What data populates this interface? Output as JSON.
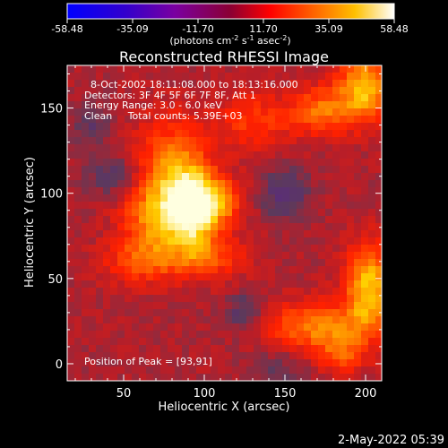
{
  "chart_data": {
    "type": "heatmap",
    "colorbar": {
      "ticks": [
        "-58.48",
        "-35.09",
        "-11.70",
        "11.70",
        "35.09",
        "58.48"
      ],
      "min": -58.48,
      "max": 58.48,
      "unit_label_parts": [
        "(photons cm",
        "-2",
        " s",
        "-1",
        " asec",
        "-2",
        ")"
      ]
    },
    "title": "Reconstructed RHESSI Image",
    "annotations": [
      "8-Oct-2002 18:11:08.000 to 18:13:16.000",
      "Detectors: 3F 4F 5F 6F 7F 8F, Att 1",
      "Energy Range: 3.0 - 6.0 keV",
      "Clean     Total counts: 5.39E+03"
    ],
    "peak_label": "Position of Peak = [93,91]",
    "peak": [
      93,
      91
    ],
    "xlabel": "Heliocentric X (arcsec)",
    "ylabel": "Heliocentric Y (arcsec)",
    "xlim": [
      15,
      210
    ],
    "ylim": [
      -10,
      175
    ],
    "xticks": [
      50,
      100,
      150,
      200
    ],
    "yticks": [
      0,
      50,
      100,
      150
    ],
    "colormap": [
      "#1010ff",
      "#6a00c8",
      "#5a2a80",
      "#5c3a5c",
      "#b81e28",
      "#ff2000",
      "#ff7000",
      "#ffd000",
      "#ffffe0"
    ],
    "sources": [
      {
        "x": 93,
        "y": 91,
        "sx": 11,
        "sy": 15,
        "amp": 58
      },
      {
        "x": 80,
        "y": 112,
        "sx": 16,
        "sy": 22,
        "amp": 34
      },
      {
        "x": 68,
        "y": 85,
        "sx": 14,
        "sy": 14,
        "amp": 26
      },
      {
        "x": 112,
        "y": 95,
        "sx": 9,
        "sy": 9,
        "amp": 28
      },
      {
        "x": 100,
        "y": 62,
        "sx": 18,
        "sy": 9,
        "amp": 24
      },
      {
        "x": 60,
        "y": 60,
        "sx": 16,
        "sy": 10,
        "amp": 22
      },
      {
        "x": 130,
        "y": 142,
        "sx": 16,
        "sy": 12,
        "amp": 20
      },
      {
        "x": 200,
        "y": 162,
        "sx": 12,
        "sy": 14,
        "amp": 44
      },
      {
        "x": 172,
        "y": 148,
        "sx": 14,
        "sy": 10,
        "amp": 30
      },
      {
        "x": 202,
        "y": 45,
        "sx": 10,
        "sy": 18,
        "amp": 46
      },
      {
        "x": 170,
        "y": 22,
        "sx": 22,
        "sy": 10,
        "amp": 34
      },
      {
        "x": 185,
        "y": 5,
        "sx": 10,
        "sy": 8,
        "amp": 22
      },
      {
        "x": 125,
        "y": 30,
        "sx": 8,
        "sy": 8,
        "amp": -18
      },
      {
        "x": 150,
        "y": 100,
        "sx": 10,
        "sy": 10,
        "amp": -22
      },
      {
        "x": 45,
        "y": 110,
        "sx": 12,
        "sy": 8,
        "amp": -18
      },
      {
        "x": 30,
        "y": 140,
        "sx": 9,
        "sy": 9,
        "amp": -14
      },
      {
        "x": 145,
        "y": -5,
        "sx": 12,
        "sy": 8,
        "amp": -12
      }
    ]
  },
  "footer": {
    "timestamp": "2-May-2022 05:39"
  }
}
